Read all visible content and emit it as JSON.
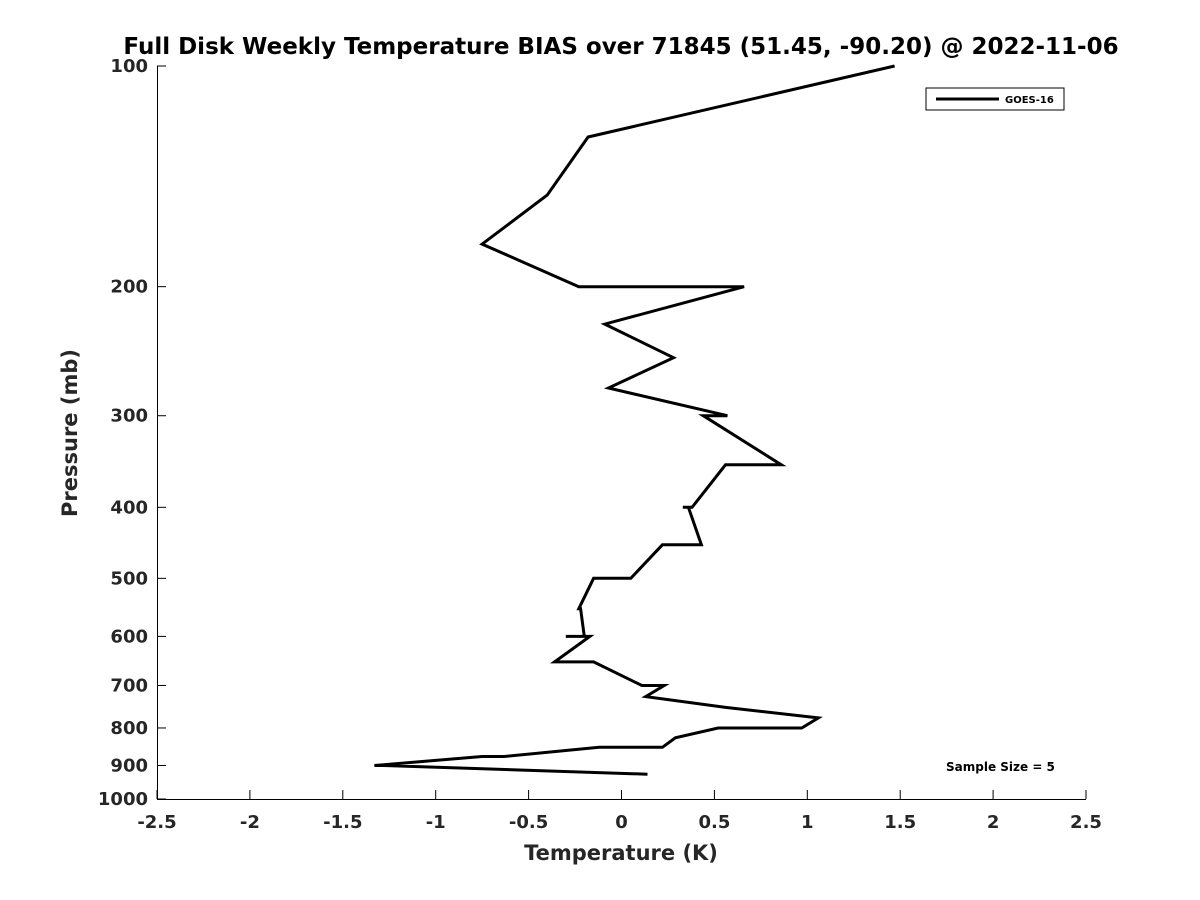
{
  "chart_data": {
    "type": "line",
    "title": "Full Disk Weekly Temperature BIAS over 71845 (51.45, -90.20) @ 2022-11-06",
    "xlabel": "Temperature (K)",
    "ylabel": "Pressure (mb)",
    "xlim": [
      -2.5,
      2.5
    ],
    "ylim": [
      100,
      1000
    ],
    "yscale": "log",
    "yaxis_reversed": true,
    "grid": false,
    "legend_position": "top-right",
    "x_ticks": [
      -2.5,
      -2,
      -1.5,
      -1,
      -0.5,
      0,
      0.5,
      1,
      1.5,
      2,
      2.5
    ],
    "x_tick_labels": [
      "-2.5",
      "-2",
      "-1.5",
      "-1",
      "-0.5",
      "0",
      "0.5",
      "1",
      "1.5",
      "2",
      "2.5"
    ],
    "y_ticks": [
      100,
      200,
      300,
      400,
      500,
      600,
      700,
      800,
      900,
      1000
    ],
    "y_tick_labels": [
      "100",
      "200",
      "300",
      "400",
      "500",
      "600",
      "700",
      "800",
      "900",
      "1000"
    ],
    "series": [
      {
        "name": "GOES-16",
        "color": "#000000",
        "points": [
          {
            "p": 100,
            "t": 1.47
          },
          {
            "p": 125,
            "t": -0.18
          },
          {
            "p": 150,
            "t": -0.4
          },
          {
            "p": 175,
            "t": -0.75
          },
          {
            "p": 200,
            "t": -0.23
          },
          {
            "p": 200,
            "t": 0.66
          },
          {
            "p": 225,
            "t": -0.09
          },
          {
            "p": 250,
            "t": 0.28
          },
          {
            "p": 275,
            "t": -0.07
          },
          {
            "p": 300,
            "t": 0.57
          },
          {
            "p": 300,
            "t": 0.44
          },
          {
            "p": 350,
            "t": 0.86
          },
          {
            "p": 350,
            "t": 0.56
          },
          {
            "p": 400,
            "t": 0.38
          },
          {
            "p": 400,
            "t": 0.33
          },
          {
            "p": 400,
            "t": 0.36
          },
          {
            "p": 450,
            "t": 0.43
          },
          {
            "p": 450,
            "t": 0.22
          },
          {
            "p": 500,
            "t": 0.05
          },
          {
            "p": 500,
            "t": -0.15
          },
          {
            "p": 550,
            "t": -0.23
          },
          {
            "p": 550,
            "t": -0.22
          },
          {
            "p": 600,
            "t": -0.2
          },
          {
            "p": 600,
            "t": -0.3
          },
          {
            "p": 600,
            "t": -0.17
          },
          {
            "p": 650,
            "t": -0.36
          },
          {
            "p": 650,
            "t": -0.15
          },
          {
            "p": 700,
            "t": 0.11
          },
          {
            "p": 700,
            "t": 0.19
          },
          {
            "p": 700,
            "t": 0.23
          },
          {
            "p": 725,
            "t": 0.13
          },
          {
            "p": 750,
            "t": 0.56
          },
          {
            "p": 775,
            "t": 1.06
          },
          {
            "p": 800,
            "t": 0.97
          },
          {
            "p": 800,
            "t": 0.52
          },
          {
            "p": 825,
            "t": 0.29
          },
          {
            "p": 850,
            "t": 0.22
          },
          {
            "p": 850,
            "t": -0.12
          },
          {
            "p": 875,
            "t": -0.63
          },
          {
            "p": 875,
            "t": -0.75
          },
          {
            "p": 900,
            "t": -1.33
          },
          {
            "p": 900,
            "t": -1.28
          },
          {
            "p": 925,
            "t": 0.14
          }
        ]
      }
    ],
    "annotations": [
      {
        "text": "Sample Size = 5"
      }
    ]
  }
}
